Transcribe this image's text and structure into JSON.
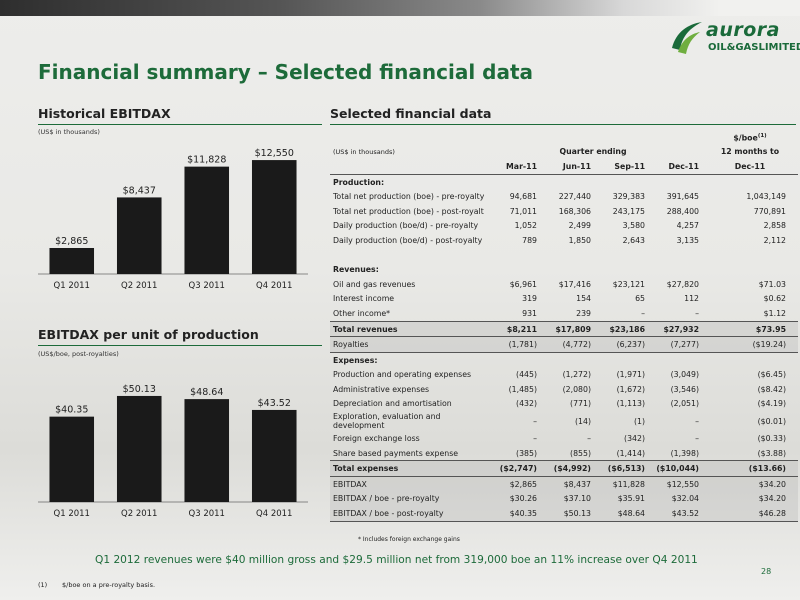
{
  "slide": {
    "title": "Financial summary – Selected financial data",
    "page_number": "28",
    "summary": "Q1 2012 revenues were $40 million gross and $29.5 million net from 319,000 boe an 11% increase over Q4 2011",
    "footnote": {
      "marker": "(1)",
      "text": "$/boe on a pre-royalty basis."
    },
    "colors": {
      "accent_green": "#1d6b3a",
      "bar": "#1a1a1a"
    }
  },
  "logo": {
    "word": "aurora",
    "sub": "OIL&GASLIMITED",
    "icon": "swoosh-icon"
  },
  "ebitdax_section": {
    "heading": "Historical EBITDAX",
    "units": "(US$ in thousands)"
  },
  "per_unit_section": {
    "heading": "EBITDAX per unit of production",
    "units": "(US$/boe, post-royalties)"
  },
  "table_section": {
    "heading": "Selected financial data",
    "foreign_note": "* Includes foreign exchange gains"
  },
  "chart_data": [
    {
      "type": "bar",
      "title": "Historical EBITDAX",
      "ylabel": "(US$ in thousands)",
      "categories": [
        "Q1 2011",
        "Q2 2011",
        "Q3 2011",
        "Q4 2011"
      ],
      "values": [
        2865,
        8437,
        11828,
        12550
      ],
      "data_labels": [
        "$2,865",
        "$8,437",
        "$11,828",
        "$12,550"
      ],
      "ylim": [
        0,
        13000
      ],
      "grid": false
    },
    {
      "type": "bar",
      "title": "EBITDAX per unit of production",
      "ylabel": "(US$/boe, post-royalties)",
      "categories": [
        "Q1 2011",
        "Q2 2011",
        "Q3 2011",
        "Q4 2011"
      ],
      "values": [
        40.35,
        50.13,
        48.64,
        43.52
      ],
      "data_labels": [
        "$40.35",
        "$50.13",
        "$48.64",
        "$43.52"
      ],
      "ylim": [
        0,
        52
      ],
      "grid": false
    }
  ],
  "table": {
    "units": "(US$ in thousands)",
    "group_header": "Quarter ending",
    "boe_header_line1": "$/boe",
    "boe_header_sup": "(1)",
    "boe_header_line2": "12 months to",
    "columns": [
      "Mar-11",
      "Jun-11",
      "Sep-11",
      "Dec-11",
      "Dec-11"
    ],
    "rows": [
      {
        "label": "Production:",
        "style": "bold section-top",
        "values": [
          "",
          "",
          "",
          "",
          ""
        ]
      },
      {
        "label": "Total net production (boe) - pre-royalty",
        "values": [
          "94,681",
          "227,440",
          "329,383",
          "391,645",
          "1,043,149"
        ]
      },
      {
        "label": "Total net production (boe) - post-royalty",
        "values": [
          "71,011",
          "168,306",
          "243,175",
          "288,400",
          "770,891"
        ]
      },
      {
        "label": "Daily production (boe/d) - pre-royalty",
        "values": [
          "1,052",
          "2,499",
          "3,580",
          "4,257",
          "2,858"
        ]
      },
      {
        "label": "Daily production (boe/d) - post-royalty",
        "values": [
          "789",
          "1,850",
          "2,643",
          "3,135",
          "2,112"
        ]
      },
      {
        "label": "",
        "style": "spacer",
        "values": [
          "",
          "",
          "",
          "",
          ""
        ]
      },
      {
        "label": "Revenues:",
        "style": "bold",
        "values": [
          "",
          "",
          "",
          "",
          ""
        ]
      },
      {
        "label": "Oil and gas revenues",
        "values": [
          "$6,961",
          "$17,416",
          "$23,121",
          "$27,820",
          "$71.03"
        ]
      },
      {
        "label": "Interest income",
        "values": [
          "319",
          "154",
          "65",
          "112",
          "$0.62"
        ]
      },
      {
        "label": "Other income*",
        "values": [
          "931",
          "239",
          "–",
          "–",
          "$1.12"
        ]
      },
      {
        "label": "Total revenues",
        "style": "bold shade topline botline",
        "values": [
          "$8,211",
          "$17,809",
          "$23,186",
          "$27,932",
          "$73.95"
        ]
      },
      {
        "label": "Royalties",
        "style": "shade botline",
        "values": [
          "(1,781)",
          "(4,772)",
          "(6,237)",
          "(7,277)",
          "($19.24)"
        ]
      },
      {
        "label": "Expenses:",
        "style": "bold",
        "values": [
          "",
          "",
          "",
          "",
          ""
        ]
      },
      {
        "label": "Production and operating expenses",
        "values": [
          "(445)",
          "(1,272)",
          "(1,971)",
          "(3,049)",
          "($6.45)"
        ]
      },
      {
        "label": "Administrative expenses",
        "values": [
          "(1,485)",
          "(2,080)",
          "(1,672)",
          "(3,546)",
          "($8.42)"
        ]
      },
      {
        "label": "Depreciation and amortisation",
        "values": [
          "(432)",
          "(771)",
          "(1,113)",
          "(2,051)",
          "($4.19)"
        ]
      },
      {
        "label": "Exploration, evaluation and development",
        "style": "wrap",
        "values": [
          "–",
          "(14)",
          "(1)",
          "–",
          "($0.01)"
        ]
      },
      {
        "label": "Foreign exchange loss",
        "values": [
          "–",
          "–",
          "(342)",
          "–",
          "($0.33)"
        ]
      },
      {
        "label": "Share based payments expense",
        "values": [
          "(385)",
          "(855)",
          "(1,414)",
          "(1,398)",
          "($3.88)"
        ]
      },
      {
        "label": "Total expenses",
        "style": "bold shade topline botline",
        "values": [
          "($2,747)",
          "($4,992)",
          "($6,513)",
          "($10,044)",
          "($13.66)"
        ]
      },
      {
        "label": "EBITDAX",
        "style": "shade",
        "values": [
          "$2,865",
          "$8,437",
          "$11,828",
          "$12,550",
          "$34.20"
        ]
      },
      {
        "label": "EBITDAX / boe - pre-royalty",
        "style": "shade",
        "values": [
          "$30.26",
          "$37.10",
          "$35.91",
          "$32.04",
          "$34.20"
        ]
      },
      {
        "label": "EBITDAX / boe - post-royalty",
        "style": "shade botline",
        "values": [
          "$40.35",
          "$50.13",
          "$48.64",
          "$43.52",
          "$46.28"
        ]
      }
    ]
  }
}
